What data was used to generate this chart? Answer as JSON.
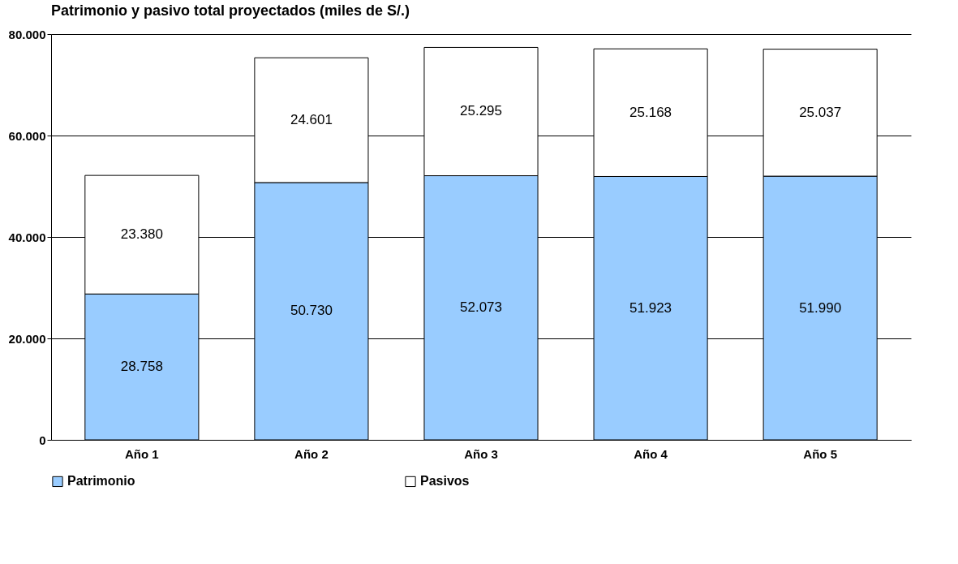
{
  "chart_data": {
    "type": "bar",
    "title": "Patrimonio y pasivo total proyectados (miles de S/.)",
    "categories": [
      "Año 1",
      "Año 2",
      "Año 3",
      "Año 4",
      "Año 5"
    ],
    "stacked": true,
    "series": [
      {
        "name": "Patrimonio",
        "color": "#99ccff",
        "values": [
          28758,
          50730,
          52073,
          51923,
          51990
        ],
        "value_labels": [
          "28.758",
          "50.730",
          "52.073",
          "51.923",
          "51.990"
        ]
      },
      {
        "name": "Pasivos",
        "color": "#ffffff",
        "values": [
          23380,
          24601,
          25295,
          25168,
          25037
        ],
        "value_labels": [
          "23.380",
          "24.601",
          "25.295",
          "25.168",
          "25.037"
        ]
      }
    ],
    "ylim": [
      0,
      80000
    ],
    "yticks": [
      {
        "value": 0,
        "label": "0"
      },
      {
        "value": 20000,
        "label": "20.000"
      },
      {
        "value": 40000,
        "label": "40.000"
      },
      {
        "value": 60000,
        "label": "60.000"
      },
      {
        "value": 80000,
        "label": "80.000"
      }
    ],
    "grid": "y",
    "legend": "bottom"
  }
}
